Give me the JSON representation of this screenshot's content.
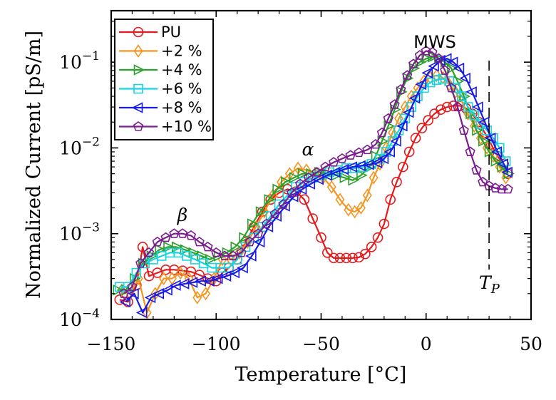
{
  "chart_data": {
    "type": "line",
    "xlabel": "Temperature [°C]",
    "ylabel": "Normalized Current [pS/m]",
    "xlim": [
      -150,
      50
    ],
    "ylim_log10": [
      -4,
      -0.4
    ],
    "y_scale": "log",
    "x_ticks": [
      -150,
      -100,
      -50,
      0,
      50
    ],
    "x_tick_labels": [
      "−150",
      "−100",
      "−50",
      "0",
      "50"
    ],
    "y_ticks_log10": [
      -4,
      -3,
      -2,
      -1
    ],
    "y_tick_labels": [
      {
        "base": "10",
        "exp": "−4"
      },
      {
        "base": "10",
        "exp": "−3"
      },
      {
        "base": "10",
        "exp": "−2"
      },
      {
        "base": "10",
        "exp": "−1"
      }
    ],
    "legend_position": "top-left",
    "annotations": {
      "alpha": "α",
      "beta": "β",
      "mws": "MWS",
      "tp_base": "T",
      "tp_sub": "P"
    },
    "tp_line_x": 30,
    "series": [
      {
        "name": "PU",
        "color": "#e41a1c",
        "marker": "circle",
        "x": [
          -146,
          -142,
          -138,
          -135,
          -132,
          -128,
          -124,
          -120,
          -116,
          -112,
          -108,
          -104,
          -100,
          -97,
          -94,
          -90,
          -86,
          -82,
          -78,
          -74,
          -70,
          -66,
          -62,
          -58,
          -54,
          -50,
          -47,
          -44,
          -41,
          -38,
          -35,
          -32,
          -29,
          -26,
          -23,
          -20,
          -17,
          -14,
          -11,
          -8,
          -5,
          -2,
          1,
          4,
          7,
          10,
          13,
          16,
          19,
          22,
          25,
          28,
          31,
          34,
          37,
          39
        ],
        "y": [
          0.00017,
          0.00016,
          0.00025,
          0.0007,
          0.00032,
          0.00035,
          0.00038,
          0.00038,
          0.00037,
          0.00036,
          0.00033,
          0.0003,
          0.00028,
          0.00035,
          0.0004,
          0.0005,
          0.0008,
          0.0012,
          0.0018,
          0.0025,
          0.003,
          0.0033,
          0.0031,
          0.0025,
          0.0015,
          0.0009,
          0.0006,
          0.00052,
          0.00052,
          0.00052,
          0.00052,
          0.00053,
          0.00058,
          0.0007,
          0.0009,
          0.0013,
          0.0025,
          0.004,
          0.006,
          0.009,
          0.013,
          0.017,
          0.021,
          0.025,
          0.028,
          0.03,
          0.031,
          0.031,
          0.029,
          0.025,
          0.02,
          0.015,
          0.011,
          0.008,
          0.0065,
          0.005
        ]
      },
      {
        "name": "+2 %",
        "color": "#f5941f",
        "marker": "diamond",
        "x": [
          -145,
          -141,
          -137,
          -133,
          -129,
          -125,
          -121,
          -117,
          -113,
          -109,
          -105,
          -101,
          -97,
          -93,
          -89,
          -85,
          -81,
          -77,
          -73,
          -69,
          -65,
          -61,
          -57,
          -53,
          -49,
          -45,
          -41,
          -37,
          -34,
          -31,
          -28,
          -25,
          -22,
          -19,
          -16,
          -13,
          -10,
          -7,
          -4,
          -1,
          2,
          5,
          8,
          11,
          14,
          17,
          20,
          23,
          26,
          29,
          32,
          35,
          38
        ],
        "y": [
          0.00022,
          0.0002,
          0.0003,
          0.00012,
          0.0002,
          0.0003,
          0.0003,
          0.00035,
          0.0003,
          0.00018,
          0.0002,
          0.0003,
          0.0005,
          0.0005,
          0.0006,
          0.0008,
          0.0012,
          0.0018,
          0.0028,
          0.004,
          0.005,
          0.0058,
          0.0055,
          0.005,
          0.0045,
          0.0035,
          0.0025,
          0.0019,
          0.0018,
          0.002,
          0.0028,
          0.0045,
          0.0065,
          0.01,
          0.015,
          0.022,
          0.03,
          0.04,
          0.05,
          0.06,
          0.066,
          0.07,
          0.066,
          0.055,
          0.045,
          0.035,
          0.025,
          0.018,
          0.013,
          0.01,
          0.008,
          0.006,
          0.0045
        ]
      },
      {
        "name": "+4 %",
        "color": "#2ca02c",
        "marker": "triangle-right",
        "x": [
          -147,
          -143,
          -139,
          -135,
          -131,
          -127,
          -123,
          -119,
          -115,
          -111,
          -107,
          -103,
          -99,
          -95,
          -91,
          -87,
          -83,
          -79,
          -75,
          -71,
          -67,
          -63,
          -59,
          -55,
          -51,
          -47,
          -43,
          -39,
          -35,
          -31,
          -27,
          -24,
          -21,
          -18,
          -15,
          -12,
          -9,
          -6,
          -3,
          0,
          3,
          6,
          9,
          12,
          15,
          18,
          21,
          24,
          27,
          30,
          33,
          36,
          39
        ],
        "y": [
          0.00022,
          0.00022,
          0.0003,
          0.00045,
          0.00055,
          0.00065,
          0.0007,
          0.0007,
          0.00065,
          0.0006,
          0.00055,
          0.0005,
          0.00055,
          0.0006,
          0.0007,
          0.0009,
          0.0013,
          0.0018,
          0.0025,
          0.0033,
          0.004,
          0.0045,
          0.005,
          0.005,
          0.0052,
          0.005,
          0.0048,
          0.0045,
          0.0042,
          0.0048,
          0.006,
          0.008,
          0.012,
          0.018,
          0.028,
          0.045,
          0.065,
          0.085,
          0.1,
          0.11,
          0.115,
          0.11,
          0.1,
          0.085,
          0.06,
          0.04,
          0.025,
          0.016,
          0.012,
          0.009,
          0.007,
          0.006,
          0.005
        ]
      },
      {
        "name": "+6 %",
        "color": "#17d4e0",
        "marker": "square",
        "x": [
          -146,
          -142,
          -138,
          -134,
          -130,
          -126,
          -122,
          -118,
          -114,
          -110,
          -106,
          -102,
          -98,
          -94,
          -90,
          -86,
          -82,
          -78,
          -74,
          -70,
          -66,
          -62,
          -58,
          -54,
          -50,
          -46,
          -42,
          -38,
          -34,
          -30,
          -26,
          -22,
          -19,
          -16,
          -13,
          -10,
          -7,
          -4,
          -1,
          2,
          5,
          8,
          11,
          14,
          17,
          20,
          23,
          26,
          29,
          32,
          35,
          38
        ],
        "y": [
          0.00024,
          0.00024,
          0.00035,
          0.00045,
          0.0005,
          0.00055,
          0.0006,
          0.0006,
          0.00055,
          0.0005,
          0.00045,
          0.0004,
          0.0004,
          0.0004,
          0.0005,
          0.0007,
          0.0009,
          0.0012,
          0.0016,
          0.0022,
          0.0028,
          0.0035,
          0.004,
          0.0045,
          0.0048,
          0.0052,
          0.0055,
          0.0058,
          0.0058,
          0.006,
          0.0065,
          0.0075,
          0.009,
          0.012,
          0.016,
          0.022,
          0.03,
          0.04,
          0.05,
          0.058,
          0.062,
          0.064,
          0.06,
          0.05,
          0.04,
          0.03,
          0.024,
          0.019,
          0.016,
          0.013,
          0.01,
          0.007
        ]
      },
      {
        "name": "+8 %",
        "color": "#1a1ae6",
        "marker": "triangle-left",
        "x": [
          -143,
          -139,
          -135,
          -131,
          -127,
          -123,
          -119,
          -115,
          -111,
          -107,
          -103,
          -99,
          -95,
          -91,
          -87,
          -83,
          -79,
          -75,
          -71,
          -67,
          -63,
          -59,
          -55,
          -51,
          -47,
          -43,
          -39,
          -35,
          -31,
          -27,
          -23,
          -20,
          -17,
          -14,
          -11,
          -8,
          -5,
          -2,
          1,
          4,
          7,
          10,
          13,
          16,
          19,
          22,
          25,
          28,
          31,
          34,
          37,
          39
        ],
        "y": [
          0.00016,
          0.0002,
          0.00012,
          0.00018,
          0.0002,
          0.00022,
          0.00025,
          0.00026,
          0.00027,
          0.00028,
          0.00028,
          0.0003,
          0.00032,
          0.00035,
          0.0004,
          0.00055,
          0.0008,
          0.0012,
          0.0016,
          0.0021,
          0.0027,
          0.0033,
          0.0038,
          0.0043,
          0.0048,
          0.0052,
          0.0056,
          0.006,
          0.0062,
          0.0064,
          0.0067,
          0.0075,
          0.009,
          0.012,
          0.018,
          0.026,
          0.038,
          0.055,
          0.075,
          0.09,
          0.105,
          0.11,
          0.1,
          0.085,
          0.065,
          0.045,
          0.03,
          0.02,
          0.013,
          0.009,
          0.0065,
          0.0052
        ]
      },
      {
        "name": "+10 %",
        "color": "#7b1c8f",
        "marker": "pentagon",
        "x": [
          -144,
          -140,
          -136,
          -132,
          -128,
          -124,
          -120,
          -116,
          -112,
          -108,
          -104,
          -100,
          -96,
          -92,
          -88,
          -84,
          -80,
          -76,
          -72,
          -68,
          -64,
          -60,
          -56,
          -52,
          -48,
          -44,
          -40,
          -36,
          -32,
          -28,
          -24,
          -21,
          -18,
          -15,
          -12,
          -9,
          -6,
          -3,
          0,
          3,
          6,
          9,
          12,
          15,
          18,
          21,
          24,
          27,
          30,
          33,
          36,
          39
        ],
        "y": [
          0.0002,
          0.00024,
          0.00045,
          0.0006,
          0.0008,
          0.0009,
          0.001,
          0.001,
          0.00095,
          0.0008,
          0.0007,
          0.0006,
          0.00055,
          0.00055,
          0.0006,
          0.0008,
          0.001,
          0.0013,
          0.0017,
          0.0022,
          0.003,
          0.0038,
          0.0045,
          0.0052,
          0.006,
          0.0068,
          0.0075,
          0.0082,
          0.0088,
          0.0095,
          0.011,
          0.015,
          0.022,
          0.032,
          0.048,
          0.07,
          0.095,
          0.12,
          0.135,
          0.13,
          0.11,
          0.08,
          0.05,
          0.03,
          0.016,
          0.009,
          0.0055,
          0.004,
          0.0036,
          0.0034,
          0.0033,
          0.0033
        ]
      }
    ]
  }
}
